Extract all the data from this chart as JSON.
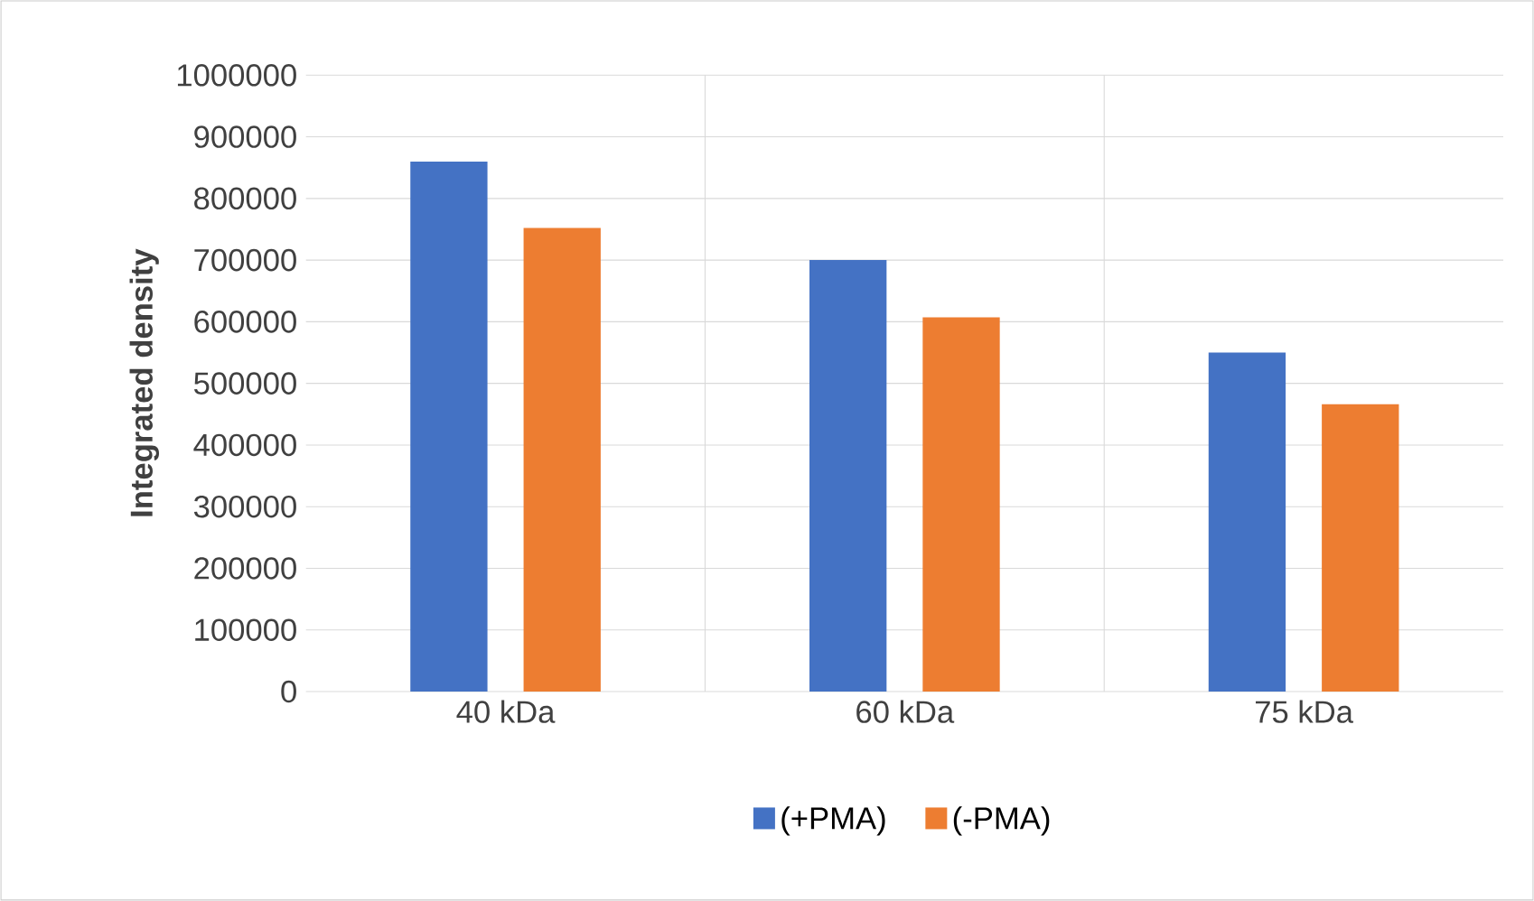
{
  "chart_data": {
    "type": "bar",
    "ylabel": "Integrated density",
    "categories": [
      "40 kDa",
      "60 kDa",
      "75 kDa"
    ],
    "series": [
      {
        "name": "(+PMA)",
        "color": "#4472c4",
        "values": [
          860000,
          700000,
          550000
        ]
      },
      {
        "name": "(-PMA)",
        "color": "#ed7d31",
        "values": [
          752000,
          607000,
          466000
        ]
      }
    ],
    "ylim": [
      0,
      1000000
    ],
    "yticks": [
      0,
      100000,
      200000,
      300000,
      400000,
      500000,
      600000,
      700000,
      800000,
      900000,
      1000000
    ],
    "grid": true,
    "legend": "bottom"
  }
}
